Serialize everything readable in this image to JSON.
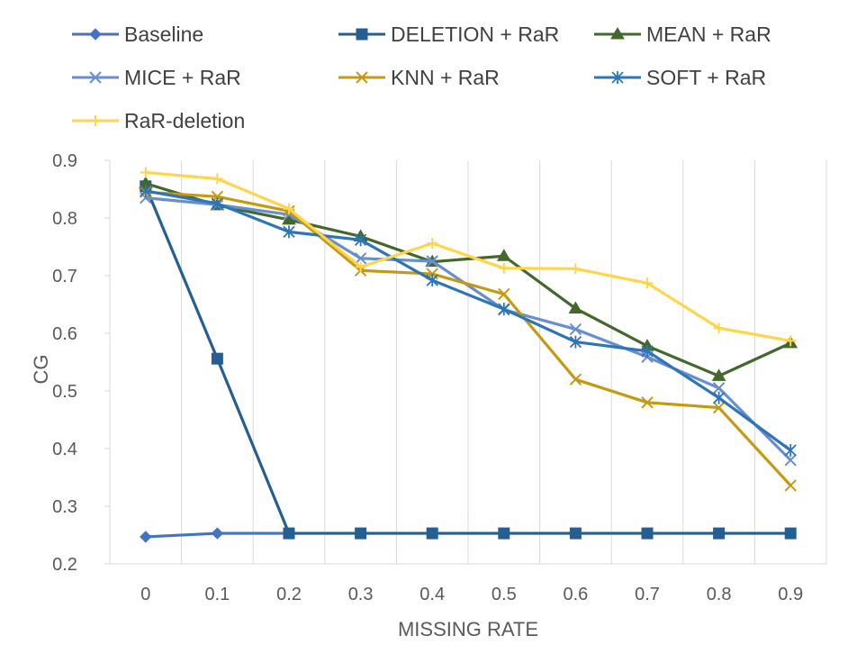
{
  "chart_data": {
    "type": "line",
    "title": "",
    "xlabel": "MISSING RATE",
    "ylabel": "CG",
    "x": [
      0,
      0.1,
      0.2,
      0.3,
      0.4,
      0.5,
      0.6,
      0.7,
      0.8,
      0.9
    ],
    "x_tick_labels": [
      "0",
      "0.1",
      "0.2",
      "0.3",
      "0.4",
      "0.5",
      "0.6",
      "0.7",
      "0.8",
      "0.9"
    ],
    "ylim": [
      0.2,
      0.9
    ],
    "y_ticks": [
      0.2,
      0.3,
      0.4,
      0.5,
      0.6,
      0.7,
      0.8,
      0.9
    ],
    "y_tick_labels": [
      "0.2",
      "0.3",
      "0.4",
      "0.5",
      "0.6",
      "0.7",
      "0.8",
      "0.9"
    ],
    "grid": "vertical",
    "legend_position": "top",
    "series": [
      {
        "name": "Baseline",
        "color": "#4472C4",
        "marker": "diamond",
        "values": [
          0.247,
          0.253,
          0.253,
          null,
          null,
          null,
          null,
          null,
          null,
          null
        ]
      },
      {
        "name": "DELETION + RaR",
        "color": "#255E91",
        "marker": "square",
        "values": [
          0.855,
          0.556,
          0.253,
          0.253,
          0.253,
          0.253,
          0.253,
          0.253,
          0.253,
          0.253
        ]
      },
      {
        "name": "MEAN + RaR",
        "color": "#43682B",
        "marker": "triangle",
        "values": [
          0.86,
          0.822,
          0.797,
          0.768,
          0.724,
          0.734,
          0.643,
          0.578,
          0.526,
          0.583
        ]
      },
      {
        "name": "MICE + RaR",
        "color": "#698ED0",
        "marker": "x",
        "values": [
          0.835,
          0.823,
          0.806,
          0.73,
          0.725,
          0.641,
          0.607,
          0.559,
          0.505,
          0.38
        ]
      },
      {
        "name": "KNN + RaR",
        "color": "#C59A12",
        "marker": "x",
        "values": [
          0.845,
          0.837,
          0.812,
          0.709,
          0.703,
          0.668,
          0.52,
          0.48,
          0.471,
          0.336
        ]
      },
      {
        "name": "SOFT + RaR",
        "color": "#2E75B6",
        "marker": "asterisk",
        "values": [
          0.847,
          0.825,
          0.776,
          0.762,
          0.692,
          0.642,
          0.585,
          0.569,
          0.488,
          0.397
        ]
      },
      {
        "name": "RaR-deletion",
        "color": "#FFD54A",
        "marker": "plus",
        "values": [
          0.879,
          0.868,
          0.816,
          0.715,
          0.756,
          0.713,
          0.712,
          0.687,
          0.609,
          0.587
        ]
      }
    ]
  }
}
